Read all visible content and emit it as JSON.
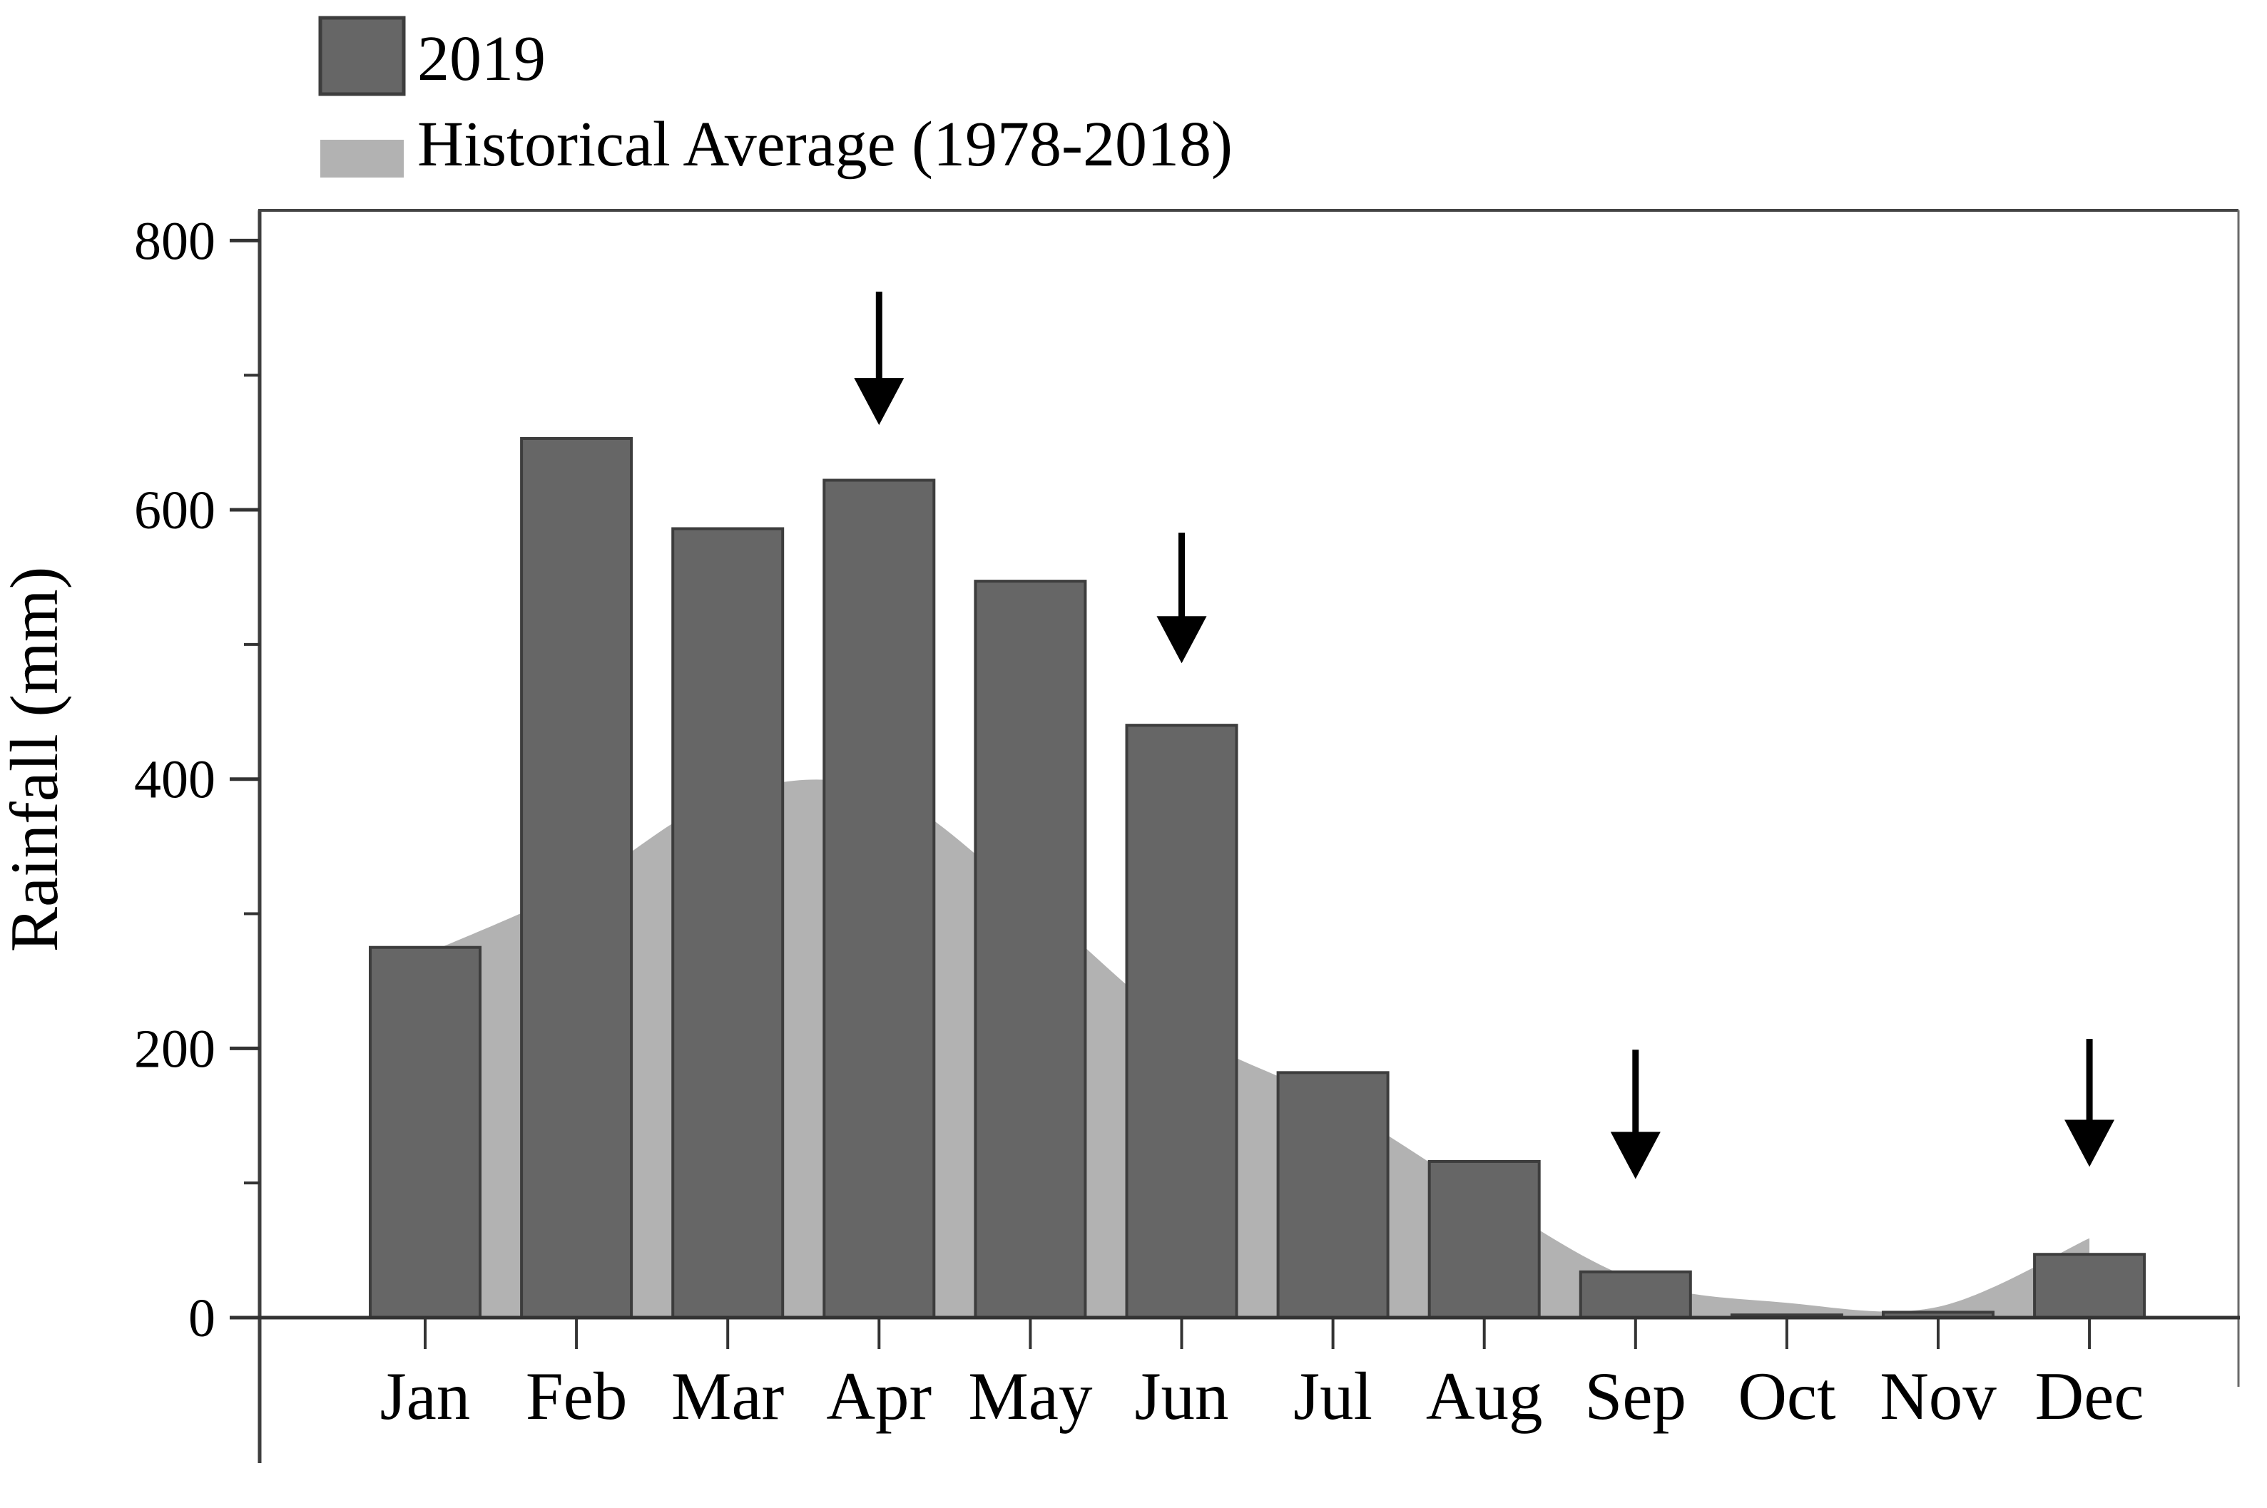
{
  "figure": {
    "background": "#ffffff",
    "text_color": "#000000"
  },
  "legend": {
    "position": "top-left",
    "items": [
      {
        "label": "2019",
        "swatch": "filled-box"
      },
      {
        "label": "Historical Average (1978-2018)",
        "swatch": "area-band"
      }
    ]
  },
  "chart_data": {
    "type": "combo",
    "title": "",
    "xlabel": "",
    "ylabel": "Rainfall (mm)",
    "categories": [
      "Jan",
      "Feb",
      "Mar",
      "Apr",
      "May",
      "Jun",
      "Jul",
      "Aug",
      "Sep",
      "Oct",
      "Nov",
      "Dec"
    ],
    "ylim": [
      0,
      800
    ],
    "y_major_ticks": [
      0,
      200,
      400,
      600,
      800
    ],
    "y_minor_step": 100,
    "grid": false,
    "legend_position": "top-left",
    "series": [
      {
        "name": "2019",
        "type": "bar",
        "color": "#666666",
        "edge_color": "#3d3d3d",
        "values": [
          275,
          653,
          586,
          622,
          547,
          440,
          182,
          116,
          34,
          2,
          4,
          47
        ]
      },
      {
        "name": "Historical Average (1978-2018)",
        "type": "area",
        "style": "smooth",
        "color": "#b2b2b2",
        "values": [
          270,
          320,
          388,
          392,
          310,
          215,
          160,
          90,
          28,
          11,
          8,
          59
        ]
      }
    ],
    "annotations": {
      "arrow_color": "#000000",
      "arrows": [
        {
          "points_at": "Apr",
          "from_mm": 762,
          "tip_mm": 663
        },
        {
          "points_at": "Jun",
          "from_mm": 583,
          "tip_mm": 486
        },
        {
          "points_at": "Sep",
          "from_mm": 199,
          "tip_mm": 103
        },
        {
          "points_at": "Dec",
          "from_mm": 207,
          "tip_mm": 112
        }
      ]
    }
  }
}
